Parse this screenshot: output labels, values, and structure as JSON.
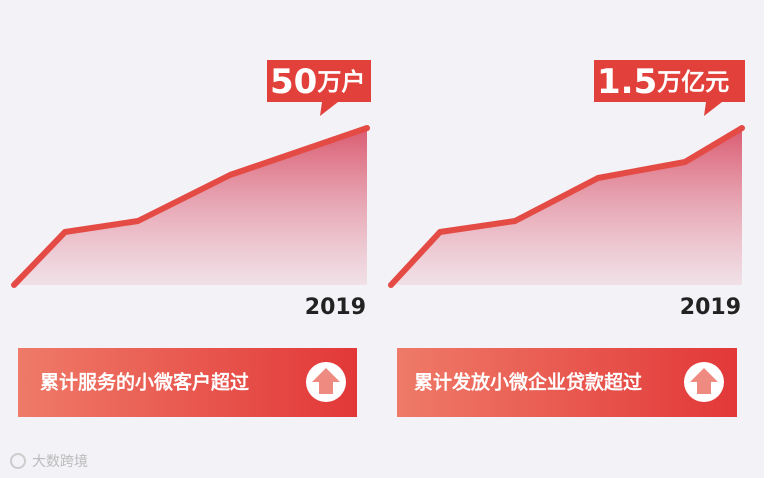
{
  "panels": [
    {
      "badge_number": "50",
      "badge_unit": "万户",
      "year": "2019",
      "caption": "累计服务的小微客户超过"
    },
    {
      "badge_number": "1.5",
      "badge_unit": "万亿元",
      "year": "2019",
      "caption": "累计发放小微企业贷款超过"
    }
  ],
  "watermark": "大数跨境"
}
